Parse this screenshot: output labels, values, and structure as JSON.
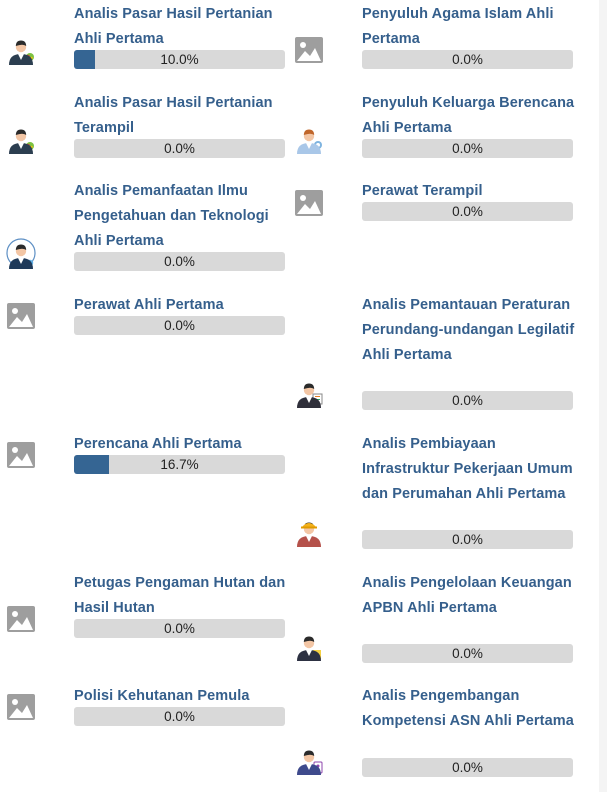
{
  "formations": [
    {
      "title": "Analis Pasar Hasil Pertanian Ahli Pertama",
      "percent_label": "10.0%",
      "percent": 10.0,
      "icon": "farmer-avatar-icon"
    },
    {
      "title": "Penyuluh Agama Islam Ahli Pertama",
      "percent_label": "0.0%",
      "percent": 0.0,
      "icon": "image-placeholder-icon"
    },
    {
      "title": "Analis Pasar Hasil Pertanian Terampil",
      "percent_label": "0.0%",
      "percent": 0.0,
      "icon": "farmer-avatar-icon"
    },
    {
      "title": "Penyuluh Keluarga Berencana Ahli Pertama",
      "percent_label": "0.0%",
      "percent": 0.0,
      "icon": "counselor-avatar-icon"
    },
    {
      "title": "Analis Pemanfaatan Ilmu Pengetahuan dan Teknologi Ahli Pertama",
      "percent_label": "0.0%",
      "percent": 0.0,
      "icon": "scientist-avatar-icon"
    },
    {
      "title": "Perawat Terampil",
      "percent_label": "0.0%",
      "percent": 0.0,
      "icon": "image-placeholder-icon"
    },
    {
      "title": "Perawat Ahli Pertama",
      "percent_label": "0.0%",
      "percent": 0.0,
      "icon": "image-placeholder-icon"
    },
    {
      "title": "Analis Pemantauan Peraturan Perundang-undangan Legilatif Ahli Pertama",
      "percent_label": "0.0%",
      "percent": 0.0,
      "icon": "legal-analyst-avatar-icon"
    },
    {
      "title": "Perencana Ahli Pertama",
      "percent_label": "16.7%",
      "percent": 16.7,
      "icon": "image-placeholder-icon"
    },
    {
      "title": "Analis Pembiayaan Infrastruktur Pekerjaan Umum dan Perumahan Ahli Pertama",
      "percent_label": "0.0%",
      "percent": 0.0,
      "icon": "engineer-avatar-icon"
    },
    {
      "title": "Petugas Pengaman Hutan dan Hasil Hutan",
      "percent_label": "0.0%",
      "percent": 0.0,
      "icon": "image-placeholder-icon"
    },
    {
      "title": "Analis Pengelolaan Keuangan APBN Ahli Pertama",
      "percent_label": "0.0%",
      "percent": 0.0,
      "icon": "finance-analyst-avatar-icon"
    },
    {
      "title": "Polisi Kehutanan Pemula",
      "percent_label": "0.0%",
      "percent": 0.0,
      "icon": "image-placeholder-icon"
    },
    {
      "title": "Analis Pengembangan Kompetensi ASN Ahli Pertama",
      "percent_label": "0.0%",
      "percent": 0.0,
      "icon": "hr-analyst-avatar-icon"
    }
  ]
}
